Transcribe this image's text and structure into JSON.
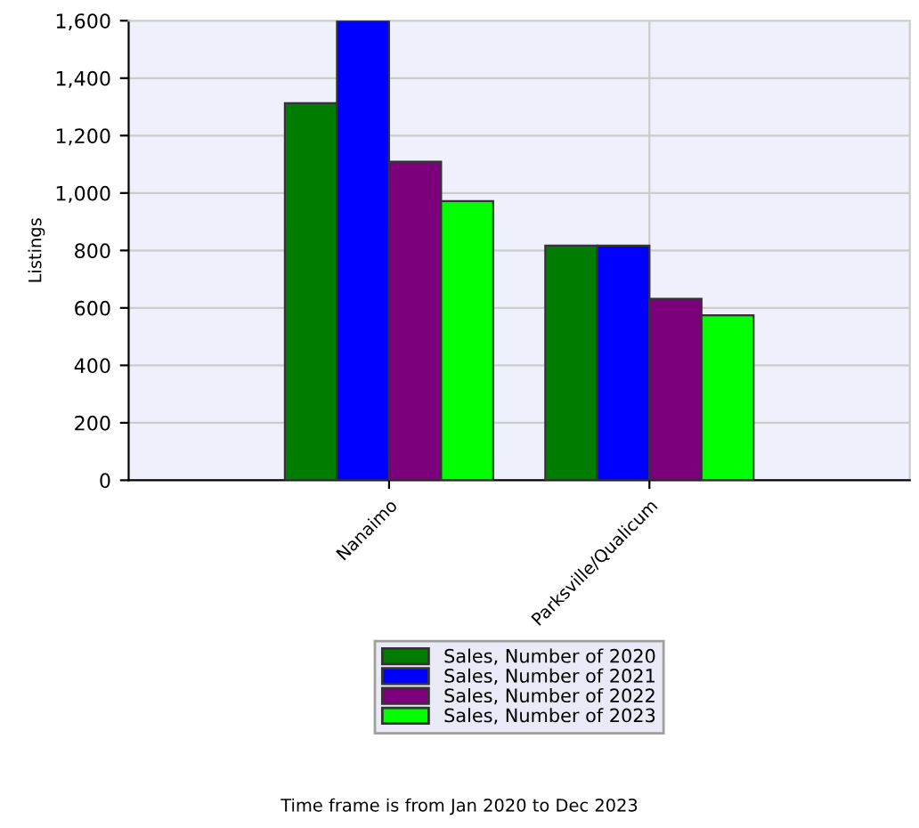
{
  "chart_data": {
    "type": "bar",
    "ylabel": "Listings",
    "categories": [
      "Nanaimo",
      "Parksville/Qualicum"
    ],
    "series": [
      {
        "name": "Sales, Number of 2020",
        "color": "#007c00",
        "values": [
          1313,
          817
        ]
      },
      {
        "name": "Sales, Number of 2021",
        "color": "#0000ff",
        "values": [
          1600,
          817
        ]
      },
      {
        "name": "Sales, Number of 2022",
        "color": "#7c007c",
        "values": [
          1109,
          632
        ]
      },
      {
        "name": "Sales, Number of 2023",
        "color": "#00ff00",
        "values": [
          972,
          574
        ]
      }
    ],
    "ylim": [
      0,
      1600
    ],
    "yticks": [
      {
        "value": 0,
        "label": "0"
      },
      {
        "value": 200,
        "label": "200"
      },
      {
        "value": 400,
        "label": "400"
      },
      {
        "value": 600,
        "label": "600"
      },
      {
        "value": 800,
        "label": "800"
      },
      {
        "value": 1000,
        "label": "1,000"
      },
      {
        "value": 1200,
        "label": "1,200"
      },
      {
        "value": 1400,
        "label": "1,400"
      },
      {
        "value": 1600,
        "label": "1,600"
      }
    ],
    "grid": true,
    "legend": "bottom",
    "annotations": [
      "Time frame is from Jan 2020 to Dec 2023"
    ]
  }
}
